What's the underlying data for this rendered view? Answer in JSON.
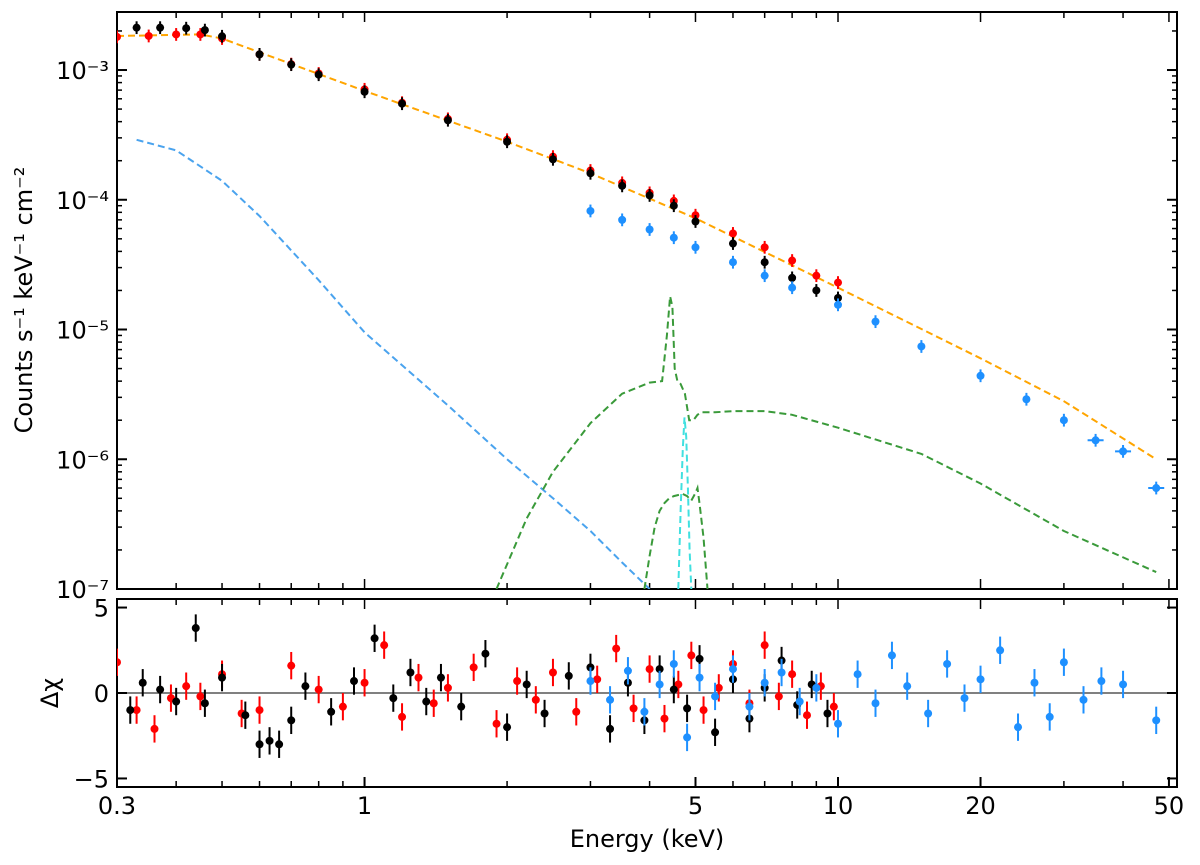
{
  "chart_data": [
    {
      "type": "scatter",
      "panel": "spectrum",
      "ylabel": "Counts s⁻¹ keV⁻¹ cm⁻²",
      "xscale": "log",
      "yscale": "log",
      "xlim": [
        0.3,
        52
      ],
      "ylim": [
        1e-07,
        0.0028
      ],
      "y_tick_labels": [
        "10⁻³",
        "10⁻⁴",
        "10⁻⁵",
        "10⁻⁶",
        "10⁻⁷"
      ],
      "y_tick_values": [
        0.001,
        0.0001,
        1e-05,
        1e-06,
        1e-07
      ],
      "colors": {
        "red_data": "#ff0000",
        "black_data": "#000000",
        "blue_data": "#1e90ff",
        "total_model": "#ffa500",
        "soft_component": "#4aa3ee",
        "reflection_component": "#3a9a3a",
        "line_component": "#40e0e0"
      },
      "series": [
        {
          "color": "#ff0000",
          "x": [
            0.3,
            0.35,
            0.4,
            0.45,
            0.5,
            0.6,
            0.7,
            0.8,
            1.0,
            1.2,
            1.5,
            2.0,
            2.5,
            3.0,
            3.5,
            4.0,
            4.5,
            5.0,
            6.0,
            7.0,
            8.0,
            9.0,
            10.0
          ],
          "y": [
            0.0018,
            0.00183,
            0.00188,
            0.00188,
            0.00175,
            0.00132,
            0.00111,
            0.00094,
            0.00071,
            0.00056,
            0.00042,
            0.00029,
            0.000215,
            0.000168,
            0.000135,
            0.000113,
            9.8e-05,
            7.6e-05,
            5.5e-05,
            4.3e-05,
            3.4e-05,
            2.6e-05,
            2.3e-05
          ]
        },
        {
          "color": "#000000",
          "x": [
            0.33,
            0.37,
            0.42,
            0.46,
            0.5,
            0.6,
            0.7,
            0.8,
            1.0,
            1.2,
            1.5,
            2.0,
            2.5,
            3.0,
            3.5,
            4.0,
            4.5,
            5.0,
            6.0,
            7.0,
            8.0,
            9.0,
            10.0
          ],
          "y": [
            0.00212,
            0.00212,
            0.0021,
            0.00203,
            0.00182,
            0.00132,
            0.0011,
            0.00092,
            0.00068,
            0.00055,
            0.00041,
            0.00028,
            0.000205,
            0.00016,
            0.000128,
            0.000108,
            9e-05,
            6.8e-05,
            4.6e-05,
            3.3e-05,
            2.5e-05,
            2e-05,
            1.75e-05
          ]
        },
        {
          "color": "#1e90ff",
          "x": [
            3.0,
            3.5,
            4.0,
            4.5,
            5.0,
            6.0,
            7.0,
            8.0,
            10.0,
            12.0,
            15.0,
            20.0,
            25.0,
            30.0,
            35.0,
            40.0,
            47.0
          ],
          "y": [
            8.2e-05,
            7e-05,
            5.9e-05,
            5.1e-05,
            4.3e-05,
            3.3e-05,
            2.6e-05,
            2.1e-05,
            1.55e-05,
            1.15e-05,
            7.4e-06,
            4.4e-06,
            2.9e-06,
            2e-06,
            1.4e-06,
            1.15e-06,
            6e-07
          ]
        }
      ],
      "model_curves": [
        {
          "color": "#ffa500",
          "style": "dashed",
          "x": [
            0.3,
            0.45,
            0.5,
            1.0,
            2.0,
            3.0,
            5.0,
            10.0,
            20.0,
            30.0,
            47.0
          ],
          "y": [
            0.00183,
            0.00188,
            0.00175,
            0.00069,
            0.00028,
            0.00016,
            7.2e-05,
            2.1e-05,
            6e-06,
            2.8e-06,
            1e-06
          ]
        },
        {
          "color": "#4aa3ee",
          "style": "dashed",
          "x": [
            0.33,
            0.4,
            0.5,
            0.6,
            0.8,
            1.0,
            1.5,
            2.0,
            2.5,
            3.0,
            3.5,
            4.0
          ],
          "y": [
            0.00029,
            0.00024,
            0.00014,
            7.5e-05,
            2.4e-05,
            9.5e-06,
            2.6e-06,
            1e-06,
            5e-07,
            2.8e-07,
            1.6e-07,
            1e-07
          ]
        },
        {
          "color": "#3a9a3a",
          "style": "dashed",
          "x": [
            1.9,
            2.2,
            2.5,
            3.0,
            3.5,
            4.0,
            4.25,
            4.35,
            4.42,
            4.47,
            4.52,
            4.58,
            4.65,
            4.75,
            4.85,
            4.95,
            5.05,
            5.15,
            5.25,
            5.35,
            5.5,
            6.0,
            7.0,
            8.0,
            10.0,
            15.0,
            20.0,
            30.0,
            47.0
          ],
          "y": [
            1e-07,
            3.5e-07,
            8e-07,
            1.9e-06,
            3.2e-06,
            3.9e-06,
            4e-06,
            9e-06,
            1.8e-05,
            1.5e-05,
            5e-06,
            4e-06,
            3.8e-06,
            3.2e-06,
            2e-06,
            2e-06,
            2.2e-06,
            2.3e-06,
            2.3e-06,
            2.3e-06,
            2.3e-06,
            2.35e-06,
            2.35e-06,
            2.2e-06,
            1.75e-06,
            1.1e-06,
            6.5e-07,
            2.8e-07,
            1.35e-07
          ]
        },
        {
          "color": "#3a9a3a",
          "style": "dashed",
          "x": [
            3.9,
            4.0,
            4.1,
            4.2,
            4.3,
            4.4,
            4.5,
            4.6,
            4.7,
            4.8,
            4.9,
            5.0,
            5.05,
            5.1,
            5.2,
            5.3
          ],
          "y": [
            1e-07,
            1.8e-07,
            3e-07,
            4e-07,
            4.6e-07,
            5e-07,
            5.2e-07,
            5.3e-07,
            5.4e-07,
            5.2e-07,
            4.8e-07,
            5.5e-07,
            6e-07,
            4.5e-07,
            2.5e-07,
            1e-07
          ]
        },
        {
          "color": "#40e0e0",
          "style": "dashed",
          "x": [
            4.6,
            4.65,
            4.7,
            4.74,
            4.78,
            4.82,
            4.86,
            4.9
          ],
          "y": [
            1e-07,
            4e-07,
            1.2e-06,
            2.1e-06,
            1.5e-06,
            6e-07,
            2e-07,
            1e-07
          ]
        }
      ]
    },
    {
      "type": "scatter",
      "panel": "residuals",
      "xlabel": "Energy (keV)",
      "ylabel": "Δχ",
      "xscale": "log",
      "xlim": [
        0.3,
        52
      ],
      "ylim": [
        -5.5,
        5.5
      ],
      "x_tick_labels": [
        "0.3",
        "1",
        "5",
        "10",
        "20",
        "50"
      ],
      "x_tick_values": [
        0.3,
        1,
        5,
        10,
        20,
        50
      ],
      "y_tick_labels": [
        "5",
        "0",
        "−5"
      ],
      "y_tick_values": [
        5,
        0,
        -5
      ],
      "zero_line_color": "#808080",
      "series": [
        {
          "color": "#ff0000",
          "x": [
            0.3,
            0.33,
            0.36,
            0.39,
            0.42,
            0.45,
            0.5,
            0.55,
            0.6,
            0.7,
            0.8,
            0.9,
            1.0,
            1.1,
            1.2,
            1.3,
            1.4,
            1.5,
            1.7,
            1.9,
            2.1,
            2.3,
            2.5,
            2.8,
            3.1,
            3.4,
            3.7,
            4.0,
            4.3,
            4.6,
            4.9,
            5.2,
            5.6,
            6.0,
            6.5,
            7.0,
            7.5,
            8.0,
            8.6,
            9.2,
            9.8
          ],
          "y": [
            1.8,
            -1.0,
            -2.1,
            -0.3,
            0.4,
            -0.2,
            1.1,
            -1.2,
            -1.0,
            1.6,
            0.2,
            -0.8,
            0.6,
            2.8,
            -1.4,
            0.9,
            -0.6,
            0.3,
            1.5,
            -1.8,
            0.7,
            -0.4,
            1.2,
            -1.1,
            0.8,
            2.6,
            -0.9,
            1.4,
            -1.5,
            0.5,
            2.2,
            -1.0,
            0.3,
            1.7,
            -0.6,
            2.8,
            -0.2,
            1.1,
            -1.3,
            0.4,
            -0.8
          ]
        },
        {
          "color": "#000000",
          "x": [
            0.32,
            0.34,
            0.37,
            0.4,
            0.44,
            0.46,
            0.5,
            0.56,
            0.6,
            0.63,
            0.66,
            0.7,
            0.75,
            0.85,
            0.95,
            1.05,
            1.15,
            1.25,
            1.35,
            1.45,
            1.6,
            1.8,
            2.0,
            2.2,
            2.4,
            2.7,
            3.0,
            3.3,
            3.6,
            3.9,
            4.2,
            4.5,
            4.8,
            5.1,
            5.5,
            6.0,
            6.5,
            7.0,
            7.6,
            8.2,
            8.8,
            9.5
          ],
          "y": [
            -1.0,
            0.6,
            0.2,
            -0.5,
            3.8,
            -0.6,
            0.9,
            -1.3,
            -3.0,
            -2.8,
            -3.0,
            -1.6,
            0.4,
            -1.1,
            0.7,
            3.2,
            -0.3,
            1.2,
            -0.5,
            0.9,
            -0.8,
            2.3,
            -2.0,
            0.5,
            -1.2,
            1.0,
            1.5,
            -2.1,
            0.6,
            -1.6,
            1.4,
            0.2,
            -0.9,
            2.0,
            -2.3,
            0.8,
            -1.5,
            0.3,
            1.9,
            -0.7,
            0.5,
            -1.2
          ]
        },
        {
          "color": "#1e90ff",
          "x": [
            3.0,
            3.3,
            3.6,
            3.9,
            4.2,
            4.5,
            4.8,
            5.1,
            5.5,
            6.0,
            6.5,
            7.0,
            7.6,
            8.3,
            9.0,
            10.0,
            11.0,
            12.0,
            13.0,
            14.0,
            15.5,
            17.0,
            18.5,
            20.0,
            22.0,
            24.0,
            26.0,
            28.0,
            30.0,
            33.0,
            36.0,
            40.0,
            47.0
          ],
          "y": [
            0.7,
            -0.4,
            1.3,
            -1.1,
            0.5,
            1.7,
            -2.6,
            0.9,
            -0.2,
            1.4,
            -0.8,
            0.6,
            1.2,
            -0.5,
            0.3,
            -1.8,
            1.1,
            -0.6,
            2.2,
            0.4,
            -1.2,
            1.7,
            -0.3,
            0.8,
            2.5,
            -2.0,
            0.6,
            -1.4,
            1.8,
            -0.4,
            0.7,
            0.5,
            -1.6
          ]
        }
      ]
    }
  ]
}
